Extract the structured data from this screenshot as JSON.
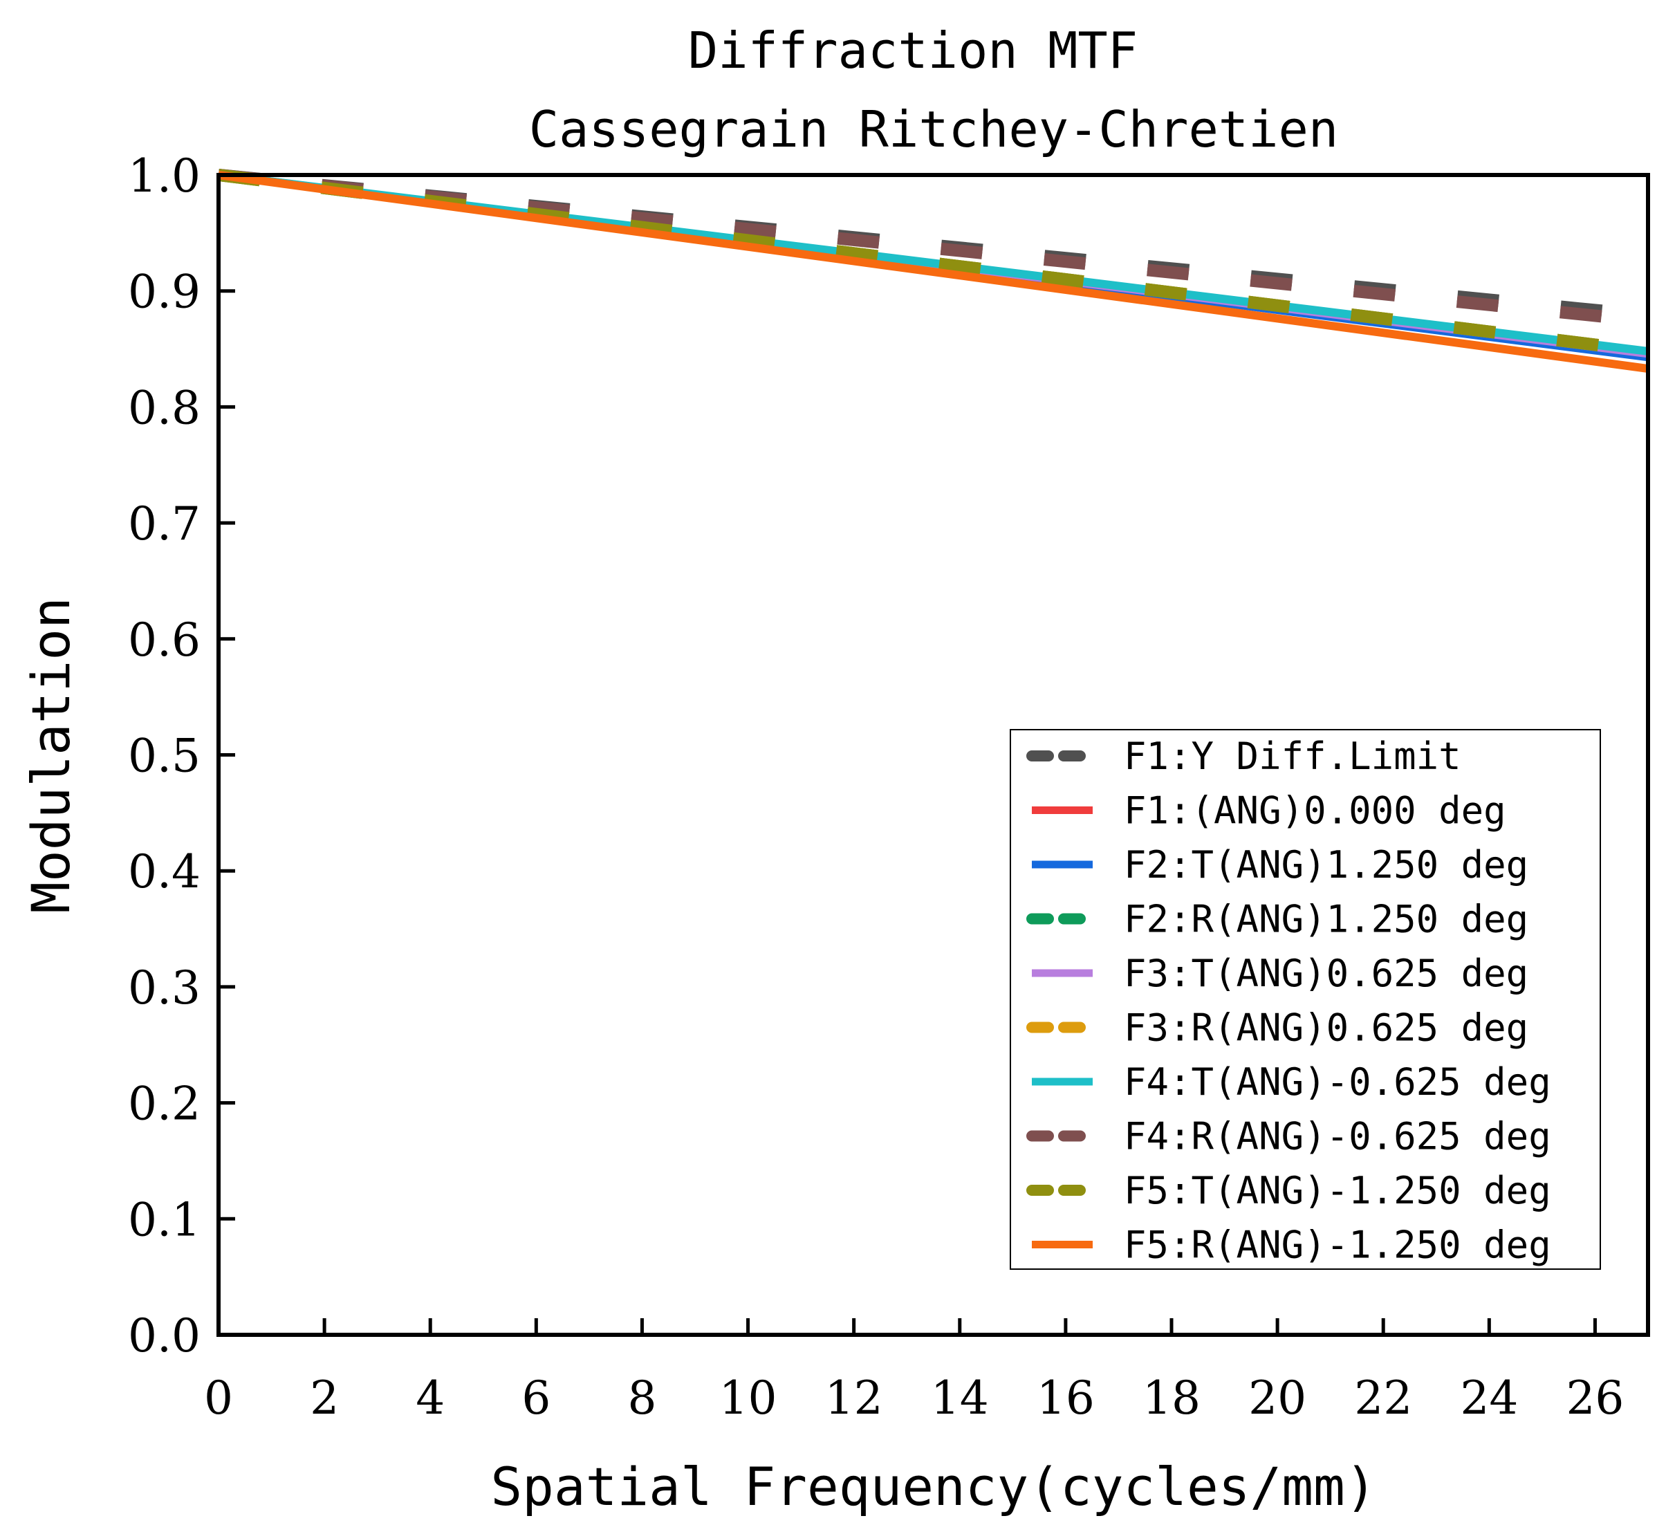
{
  "chart_data": {
    "type": "line",
    "title": "Diffraction MTF",
    "subtitle": "Cassegrain Ritchey-Chretien",
    "xlabel": "Spatial Frequency(cycles/mm)",
    "ylabel": "Modulation",
    "xlim": [
      0,
      27
    ],
    "ylim": [
      0,
      1
    ],
    "x_ticks": [
      "0",
      "2",
      "4",
      "6",
      "8",
      "10",
      "12",
      "14",
      "16",
      "18",
      "20",
      "22",
      "24",
      "26"
    ],
    "y_ticks": [
      "0.0",
      "0.1",
      "0.2",
      "0.3",
      "0.4",
      "0.5",
      "0.6",
      "0.7",
      "0.8",
      "0.9",
      "1.0"
    ],
    "legend_position": "bottom-right",
    "x": [
      0,
      27
    ],
    "series": [
      {
        "name": "F1:Y Diff.Limit",
        "color": "#505050",
        "dash": true,
        "values": [
          1.0,
          0.879
        ]
      },
      {
        "name": "F1:(ANG)0.000 deg",
        "color": "#f03c3c",
        "dash": false,
        "values": [
          1.0,
          0.845
        ]
      },
      {
        "name": "F2:T(ANG)1.250 deg",
        "color": "#1569dd",
        "dash": false,
        "values": [
          1.0,
          0.843
        ]
      },
      {
        "name": "F2:R(ANG)1.250 deg",
        "color": "#0e9b5a",
        "dash": true,
        "values": [
          1.0,
          0.848
        ]
      },
      {
        "name": "F3:T(ANG)0.625 deg",
        "color": "#b87ede",
        "dash": false,
        "values": [
          1.0,
          0.846
        ]
      },
      {
        "name": "F3:R(ANG)0.625 deg",
        "color": "#dd9c0e",
        "dash": true,
        "values": [
          1.0,
          0.848
        ]
      },
      {
        "name": "F4:T(ANG)-0.625 deg",
        "color": "#1ebfc8",
        "dash": false,
        "values": [
          1.0,
          0.848
        ]
      },
      {
        "name": "F4:R(ANG)-0.625 deg",
        "color": "#7f4f4f",
        "dash": true,
        "values": [
          1.0,
          0.874
        ]
      },
      {
        "name": "F5:T(ANG)-1.250 deg",
        "color": "#8f8f10",
        "dash": true,
        "values": [
          1.0,
          0.848
        ]
      },
      {
        "name": "F5:R(ANG)-1.250 deg",
        "color": "#f76a10",
        "dash": false,
        "values": [
          1.0,
          0.833
        ]
      }
    ]
  }
}
